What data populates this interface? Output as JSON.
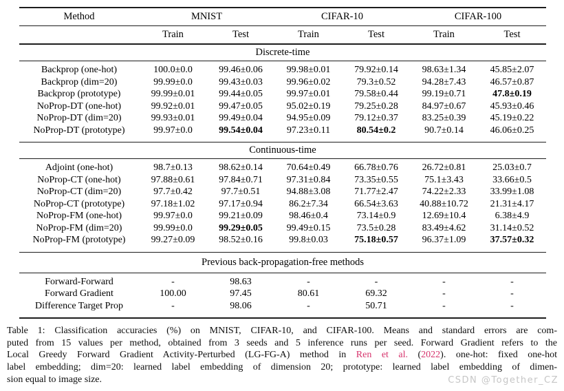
{
  "colors": {
    "citation": "#d6336c",
    "watermark": "#c6c6c6",
    "rule": "#1c1c1c",
    "background": "#ffffff"
  },
  "watermark": "CSDN @Together_CZ",
  "table": {
    "header": {
      "method": "Method",
      "groups": [
        "MNIST",
        "CIFAR-10",
        "CIFAR-100"
      ],
      "sub": [
        "Train",
        "Test",
        "Train",
        "Test",
        "Train",
        "Test"
      ]
    },
    "sections": [
      {
        "title": "Discrete-time",
        "rows": [
          {
            "method": "Backprop (one-hot)",
            "values": [
              "100.0±0.0",
              "99.46±0.06",
              "99.98±0.01",
              "79.92±0.14",
              "98.63±1.34",
              "45.85±2.07"
            ],
            "bold": []
          },
          {
            "method": "Backprop (dim=20)",
            "values": [
              "99.99±0.0",
              "99.43±0.03",
              "99.96±0.02",
              "79.3±0.52",
              "94.28±7.43",
              "46.57±0.87"
            ],
            "bold": []
          },
          {
            "method": "Backprop (prototype)",
            "values": [
              "99.99±0.01",
              "99.44±0.05",
              "99.97±0.01",
              "79.58±0.44",
              "99.19±0.71",
              "47.8±0.19"
            ],
            "bold": [
              5
            ]
          },
          {
            "method": "NoProp-DT (one-hot)",
            "values": [
              "99.92±0.01",
              "99.47±0.05",
              "95.02±0.19",
              "79.25±0.28",
              "84.97±0.67",
              "45.93±0.46"
            ],
            "bold": []
          },
          {
            "method": "NoProp-DT (dim=20)",
            "values": [
              "99.93±0.01",
              "99.49±0.04",
              "94.95±0.09",
              "79.12±0.37",
              "83.25±0.39",
              "45.19±0.22"
            ],
            "bold": []
          },
          {
            "method": "NoProp-DT (prototype)",
            "values": [
              "99.97±0.0",
              "99.54±0.04",
              "97.23±0.11",
              "80.54±0.2",
              "90.7±0.14",
              "46.06±0.25"
            ],
            "bold": [
              1,
              3
            ]
          }
        ]
      },
      {
        "title": "Continuous-time",
        "rows": [
          {
            "method": "Adjoint (one-hot)",
            "values": [
              "98.7±0.13",
              "98.62±0.14",
              "70.64±0.49",
              "66.78±0.76",
              "26.72±0.81",
              "25.03±0.7"
            ],
            "bold": []
          },
          {
            "method": "NoProp-CT (one-hot)",
            "values": [
              "97.88±0.61",
              "97.84±0.71",
              "97.31±0.84",
              "73.35±0.55",
              "75.1±3.43",
              "33.66±0.5"
            ],
            "bold": []
          },
          {
            "method": "NoProp-CT (dim=20)",
            "values": [
              "97.7±0.42",
              "97.7±0.51",
              "94.88±3.08",
              "71.77±2.47",
              "74.22±2.33",
              "33.99±1.08"
            ],
            "bold": []
          },
          {
            "method": "NoProp-CT (prototype)",
            "values": [
              "97.18±1.02",
              "97.17±0.94",
              "86.2±7.34",
              "66.54±3.63",
              "40.88±10.72",
              "21.31±4.17"
            ],
            "bold": []
          },
          {
            "method": "NoProp-FM (one-hot)",
            "values": [
              "99.97±0.0",
              "99.21±0.09",
              "98.46±0.4",
              "73.14±0.9",
              "12.69±10.4",
              "6.38±4.9"
            ],
            "bold": []
          },
          {
            "method": "NoProp-FM (dim=20)",
            "values": [
              "99.99±0.0",
              "99.29±0.05",
              "99.49±0.15",
              "73.5±0.28",
              "83.49±4.62",
              "31.14±0.52"
            ],
            "bold": [
              1
            ]
          },
          {
            "method": "NoProp-FM (prototype)",
            "values": [
              "99.27±0.09",
              "98.52±0.16",
              "99.8±0.03",
              "75.18±0.57",
              "96.37±1.09",
              "37.57±0.32"
            ],
            "bold": [
              3,
              5
            ]
          }
        ]
      },
      {
        "title": "Previous back-propagation-free methods",
        "rows": [
          {
            "method": "Forward-Forward",
            "values": [
              "-",
              "98.63",
              "-",
              "-",
              "-",
              "-"
            ],
            "bold": []
          },
          {
            "method": "Forward Gradient",
            "values": [
              "100.00",
              "97.45",
              "80.61",
              "69.32",
              "-",
              "-"
            ],
            "bold": []
          },
          {
            "method": "Difference Target Prop",
            "values": [
              "-",
              "98.06",
              "-",
              "50.71",
              "-",
              "-"
            ],
            "bold": []
          }
        ]
      }
    ]
  },
  "caption": {
    "lines": [
      {
        "justify": true,
        "segments": [
          {
            "t": "Table 1: Classification accuracies (%) on MNIST, CIFAR-10, and CIFAR-100. Means and standard errors are com-"
          }
        ]
      },
      {
        "justify": true,
        "segments": [
          {
            "t": "puted from 15 values per method, obtained from 3 seeds and 5 inference runs per seed. Forward Gradient refers to the"
          }
        ]
      },
      {
        "justify": true,
        "segments": [
          {
            "t": "Local Greedy Forward Gradient Activity-Perturbed (LG-FG-A) method in "
          },
          {
            "t": "Ren et al.",
            "cite": true
          },
          {
            "t": " ("
          },
          {
            "t": "2022",
            "cite": true
          },
          {
            "t": ").  one-hot: fixed one-hot"
          }
        ]
      },
      {
        "justify": true,
        "segments": [
          {
            "t": "label embedding; dim=20: learned label embedding of dimension 20; prototype: learned label embedding of dimen-"
          }
        ]
      },
      {
        "justify": false,
        "segments": [
          {
            "t": "sion equal to image size."
          }
        ]
      }
    ]
  }
}
